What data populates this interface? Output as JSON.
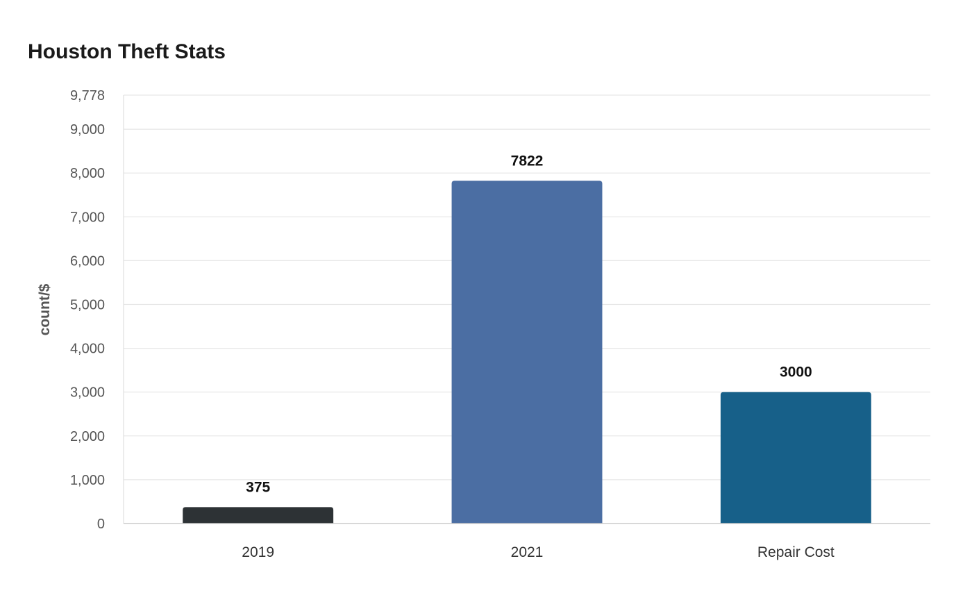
{
  "chart_data": {
    "type": "bar",
    "title": "Houston Theft Stats",
    "xlabel": "",
    "ylabel": "count/$",
    "categories": [
      "2019",
      "2021",
      "Repair Cost"
    ],
    "values": [
      375,
      7822,
      3000
    ],
    "data_labels": [
      "375",
      "7822",
      "3000"
    ],
    "bar_colors": [
      "#2d3235",
      "#4b6ea3",
      "#176089"
    ],
    "ylim": [
      0,
      9778
    ],
    "yticks": [
      0,
      1000,
      2000,
      3000,
      4000,
      5000,
      6000,
      7000,
      8000,
      9000,
      9778
    ],
    "ytick_labels": [
      "0",
      "1,000",
      "2,000",
      "3,000",
      "4,000",
      "5,000",
      "6,000",
      "7,000",
      "8,000",
      "9,000",
      "9,778"
    ],
    "grid": true,
    "legend": "none"
  }
}
